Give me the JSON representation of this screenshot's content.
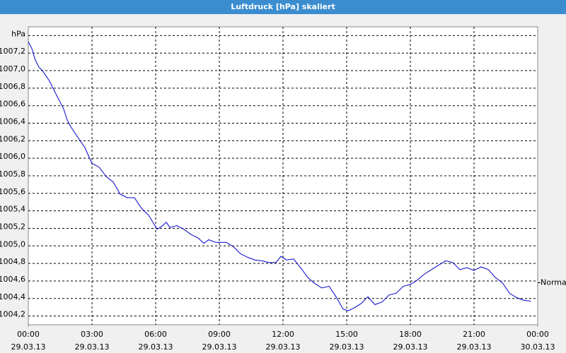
{
  "chart_data": {
    "type": "line",
    "title": "Luftdruck [hPa] skaliert",
    "x": [
      0,
      0.17,
      0.33,
      0.5,
      0.67,
      1.0,
      1.33,
      1.67,
      1.83,
      2.0,
      2.33,
      2.67,
      3.0,
      3.33,
      3.67,
      4.0,
      4.33,
      4.67,
      5.0,
      5.33,
      5.67,
      6.07,
      6.33,
      6.5,
      6.67,
      7.0,
      7.33,
      7.67,
      8.0,
      8.27,
      8.5,
      8.83,
      9.33,
      9.67,
      10.0,
      10.33,
      10.67,
      11.0,
      11.33,
      11.67,
      11.9,
      12.17,
      12.5,
      12.83,
      13.17,
      13.5,
      13.83,
      14.17,
      14.5,
      14.83,
      15.07,
      15.33,
      15.67,
      16.0,
      16.33,
      16.67,
      17.0,
      17.33,
      17.67,
      18.0,
      18.33,
      18.67,
      19.0,
      19.33,
      19.67,
      20.0,
      20.33,
      20.67,
      21.0,
      21.33,
      21.67,
      22.0,
      22.33,
      22.67,
      23.0,
      23.33,
      23.67
    ],
    "series": [
      {
        "name": "Luftdruck",
        "color": "#0000cc",
        "values": [
          1007.33,
          1007.25,
          1007.12,
          1007.04,
          1007.0,
          1006.88,
          1006.72,
          1006.56,
          1006.44,
          1006.36,
          1006.24,
          1006.12,
          1005.94,
          1005.9,
          1005.79,
          1005.73,
          1005.59,
          1005.55,
          1005.55,
          1005.43,
          1005.35,
          1005.19,
          1005.23,
          1005.27,
          1005.21,
          1005.23,
          1005.19,
          1005.13,
          1005.09,
          1005.03,
          1005.07,
          1005.04,
          1005.04,
          1004.99,
          1004.91,
          1004.87,
          1004.84,
          1004.83,
          1004.81,
          1004.81,
          1004.88,
          1004.84,
          1004.85,
          1004.75,
          1004.64,
          1004.57,
          1004.52,
          1004.54,
          1004.42,
          1004.28,
          1004.26,
          1004.29,
          1004.34,
          1004.42,
          1004.33,
          1004.36,
          1004.44,
          1004.46,
          1004.54,
          1004.56,
          1004.61,
          1004.68,
          1004.73,
          1004.78,
          1004.83,
          1004.81,
          1004.73,
          1004.75,
          1004.72,
          1004.76,
          1004.73,
          1004.64,
          1004.58,
          1004.46,
          1004.41,
          1004.38,
          1004.37
        ]
      }
    ],
    "xlim": [
      0,
      24
    ],
    "xticks": [
      {
        "value": 0,
        "label": "00:00 29.03.13"
      },
      {
        "value": 3,
        "label": "03:00 29.03.13"
      },
      {
        "value": 6,
        "label": "06:00 29.03.13"
      },
      {
        "value": 9,
        "label": "09:00 29.03.13"
      },
      {
        "value": 12,
        "label": "12:00 29.03.13"
      },
      {
        "value": 15,
        "label": "15:00 29.03.13"
      },
      {
        "value": 18,
        "label": "18:00 29.03.13"
      },
      {
        "value": 21,
        "label": "21:00 29.03.13"
      },
      {
        "value": 24,
        "label": "00:00 30.03.13"
      }
    ],
    "ylim": [
      1004.1,
      1007.5
    ],
    "yticks": [
      {
        "value": 1004.2,
        "label": "1004,2"
      },
      {
        "value": 1004.4,
        "label": "1004,4"
      },
      {
        "value": 1004.6,
        "label": "1004,6"
      },
      {
        "value": 1004.8,
        "label": "1004,8"
      },
      {
        "value": 1005.0,
        "label": "1005,0"
      },
      {
        "value": 1005.2,
        "label": "1005,2"
      },
      {
        "value": 1005.4,
        "label": "1005,4"
      },
      {
        "value": 1005.6,
        "label": "1005,6"
      },
      {
        "value": 1005.8,
        "label": "1005,8"
      },
      {
        "value": 1006.0,
        "label": "1006,0"
      },
      {
        "value": 1006.2,
        "label": "1006,2"
      },
      {
        "value": 1006.4,
        "label": "1006,4"
      },
      {
        "value": 1006.6,
        "label": "1006,6"
      },
      {
        "value": 1006.8,
        "label": "1006,8"
      },
      {
        "value": 1007.0,
        "label": "1007,0"
      },
      {
        "value": 1007.2,
        "label": "1007,2"
      },
      {
        "value": 1007.4,
        "label": "hPa"
      }
    ],
    "grid": true,
    "annotation": {
      "text": "Normal",
      "value": 1004.58
    }
  }
}
